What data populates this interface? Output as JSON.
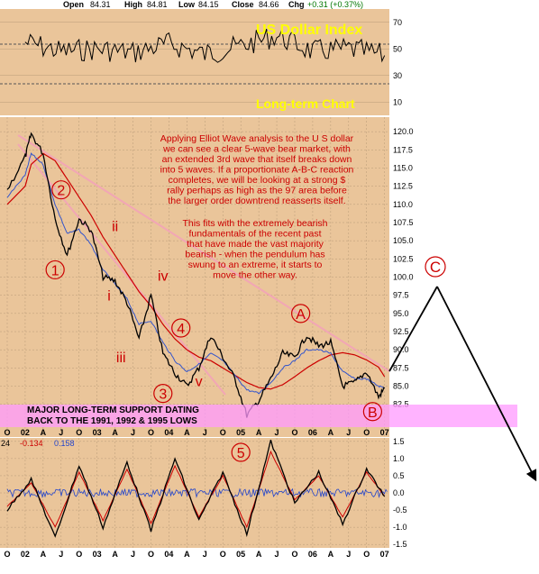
{
  "header": {
    "open_label": "Open",
    "open": "84.31",
    "high_label": "High",
    "high": "84.81",
    "low_label": "Low",
    "low": "84.15",
    "close_label": "Close",
    "close": "84.66",
    "chg_label": "Chg",
    "chg": "+0.31 (+0.37%)"
  },
  "titles": {
    "main": "US Dollar Index",
    "sub": "Long-term Chart"
  },
  "annotation": {
    "para1": [
      "Applying Elliot Wave analysis to the U S dollar",
      "we can see a clear 5-wave bear market, with",
      "an extended 3rd wave that itself breaks down",
      "into 5 waves. If a proportionate A-B-C reaction",
      "completes, we will be looking at a strong $",
      "rally perhaps as high as the 97 area before",
      "the larger order downtrend reasserts itself."
    ],
    "para2": [
      "This fits with the extremely bearish",
      "fundamentals of the recent past",
      "that have made the vast majority",
      "bearish - when the pendulum has",
      "swung to an extreme, it starts to",
      "move the other way."
    ]
  },
  "support_text": [
    "MAJOR LONG-TERM SUPPORT DATING",
    "BACK TO THE 1991, 1992 & 1995 LOWS"
  ],
  "macd_header": {
    "a": "24",
    "b": "-0.134",
    "c": "0.158"
  },
  "wave_labels": {
    "circled": [
      "1",
      "2",
      "3",
      "4",
      "5",
      "A",
      "B",
      "C"
    ],
    "sub": [
      "i",
      "ii",
      "iii",
      "iv",
      "v"
    ]
  },
  "colors": {
    "background": "#eac59a",
    "price": "#000000",
    "ma_short": "#3355cc",
    "ma_long": "#cc0000",
    "channel": "#f2a6b5",
    "support_band": "#ff99ff",
    "annotation": "#cc0000",
    "title": "#ffff00",
    "macd_hist": "#2244cc",
    "macd_signal": "#cc0000"
  },
  "chart_data": [
    {
      "type": "line",
      "panel": "RSI",
      "ylim": [
        0,
        80
      ],
      "yticks": [
        10,
        30,
        50,
        70
      ],
      "reference_lines": [
        30,
        70
      ],
      "x": [
        "2002-01",
        "2002-07",
        "2003-01",
        "2003-07",
        "2004-01",
        "2004-07",
        "2005-01",
        "2005-07",
        "2006-01",
        "2006-07",
        "2007-01"
      ],
      "series": [
        {
          "values": [
            55,
            48,
            50,
            47,
            54,
            46,
            52,
            60,
            48,
            50,
            45
          ]
        }
      ]
    },
    {
      "type": "line",
      "panel": "Price",
      "ylim": [
        78,
        122
      ],
      "yticks": [
        82.5,
        85.0,
        87.5,
        90.0,
        92.5,
        95.0,
        97.5,
        100.0,
        102.5,
        105.0,
        107.5,
        110.0,
        112.5,
        115.0,
        117.5,
        120.0
      ],
      "x_labels": [
        "O",
        "02",
        "A",
        "J",
        "O",
        "03",
        "A",
        "J",
        "O",
        "04",
        "A",
        "J",
        "O",
        "05",
        "A",
        "J",
        "O",
        "06",
        "A",
        "J",
        "O",
        "07"
      ],
      "x": [
        "2001-10",
        "2002-01",
        "2002-02",
        "2002-04",
        "2002-06",
        "2002-08",
        "2002-10",
        "2002-12",
        "2003-02",
        "2003-04",
        "2003-06",
        "2003-08",
        "2003-10",
        "2003-12",
        "2004-02",
        "2004-04",
        "2004-06",
        "2004-08",
        "2004-10",
        "2004-12",
        "2005-02",
        "2005-04",
        "2005-06",
        "2005-08",
        "2005-10",
        "2005-12",
        "2006-02",
        "2006-04",
        "2006-06",
        "2006-08",
        "2006-10",
        "2006-12",
        "2007-01"
      ],
      "series": [
        {
          "values": [
            112.0,
            116.5,
            119.7,
            117.0,
            108.0,
            103.0,
            108.0,
            106.5,
            100.0,
            99.5,
            96.5,
            91.5,
            97.5,
            89.5,
            86.8,
            85.0,
            87.5,
            92.0,
            89.0,
            86.0,
            81.0,
            83.0,
            86.0,
            89.5,
            89.0,
            92.0,
            90.5,
            91.0,
            85.0,
            85.5,
            87.0,
            83.5,
            84.7
          ]
        },
        {
          "values": [
            111.0,
            114.0,
            117.0,
            115.5,
            110.0,
            106.0,
            106.5,
            104.5,
            101.0,
            99.0,
            97.0,
            93.5,
            94.0,
            91.0,
            88.5,
            87.0,
            88.0,
            89.5,
            88.5,
            86.5,
            84.5,
            84.0,
            85.5,
            87.5,
            88.5,
            90.0,
            90.0,
            89.5,
            87.0,
            86.0,
            86.0,
            85.0,
            84.8
          ]
        },
        {
          "values": [
            110.0,
            112.5,
            115.5,
            117.0,
            116.0,
            113.5,
            111.0,
            108.5,
            105.5,
            103.0,
            100.5,
            98.0,
            96.0,
            93.5,
            91.5,
            90.0,
            89.0,
            88.5,
            87.5,
            86.5,
            85.5,
            84.8,
            84.6,
            85.2,
            86.3,
            87.5,
            88.5,
            89.3,
            89.6,
            89.3,
            88.6,
            87.6,
            86.3
          ]
        }
      ],
      "annotations": [
        {
          "label": "1",
          "x": "2002-06",
          "y": 101.0
        },
        {
          "label": "2",
          "x": "2002-07",
          "y": 112.0
        },
        {
          "label": "3",
          "x": "2003-12",
          "y": 84.0
        },
        {
          "label": "4",
          "x": "2004-03",
          "y": 93.0
        },
        {
          "label": "5",
          "x": "2005-01",
          "y": 76.0
        },
        {
          "label": "A",
          "x": "2005-11",
          "y": 95.0
        },
        {
          "label": "B",
          "x": "2006-11",
          "y": 81.5
        },
        {
          "label": "C",
          "x": "2007-05",
          "y": 99.5
        }
      ]
    },
    {
      "type": "line",
      "panel": "MACD",
      "ylim": [
        -1.6,
        1.6
      ],
      "yticks": [
        -1.5,
        -1.0,
        -0.5,
        0.0,
        0.5,
        1.0,
        1.5
      ],
      "x_labels": [
        "O",
        "02",
        "A",
        "J",
        "O",
        "03",
        "A",
        "J",
        "O",
        "04",
        "A",
        "J",
        "O",
        "05",
        "A",
        "J",
        "O",
        "06",
        "A",
        "J",
        "O",
        "07"
      ],
      "x": [
        "2001-10",
        "2002-02",
        "2002-06",
        "2002-10",
        "2003-02",
        "2003-06",
        "2003-10",
        "2004-02",
        "2004-06",
        "2004-10",
        "2005-02",
        "2005-06",
        "2005-10",
        "2006-02",
        "2006-06",
        "2006-10",
        "2007-01"
      ],
      "series": [
        {
          "values": [
            -0.5,
            0.4,
            -1.3,
            0.8,
            -1.0,
            0.9,
            -1.1,
            1.0,
            -0.8,
            0.6,
            -1.2,
            1.5,
            -0.3,
            0.6,
            -0.9,
            0.7,
            -0.1
          ]
        },
        {
          "values": [
            -0.4,
            0.3,
            -1.0,
            0.6,
            -0.8,
            0.7,
            -0.9,
            0.8,
            -0.7,
            0.5,
            -1.0,
            1.2,
            -0.2,
            0.5,
            -0.7,
            0.6,
            -0.1
          ]
        }
      ]
    }
  ]
}
